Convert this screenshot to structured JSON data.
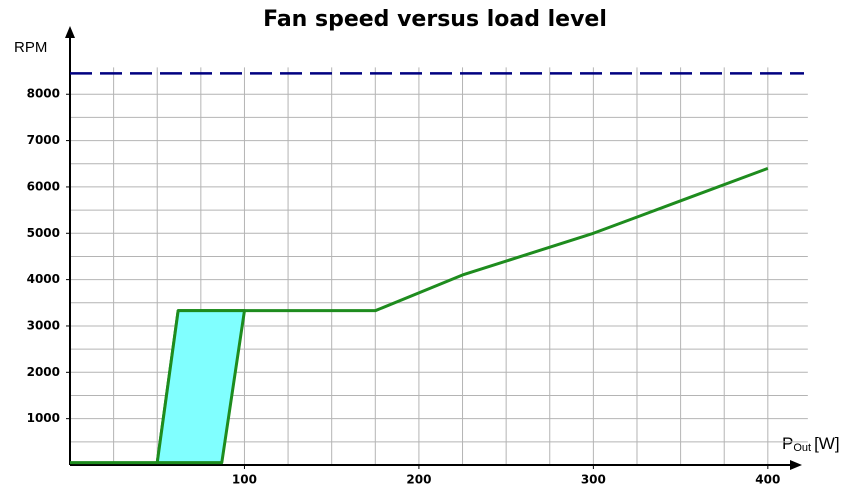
{
  "chart_data": {
    "type": "line",
    "title": "Fan speed versus load level",
    "ylabel": "RPM",
    "xlabel": [
      "P",
      "Out",
      "[W]"
    ],
    "xlim": [
      0,
      415
    ],
    "ylim": [
      0,
      9300
    ],
    "xticks": [
      100,
      200,
      300,
      400
    ],
    "yticks": [
      1000,
      2000,
      3000,
      4000,
      5000,
      6000,
      7000,
      8000
    ],
    "x_gridlines": [
      25,
      50,
      75,
      100,
      125,
      150,
      175,
      200,
      225,
      250,
      275,
      300,
      325,
      350,
      375,
      400
    ],
    "y_gridlines": [
      500,
      1000,
      1500,
      2000,
      2500,
      3000,
      3500,
      4000,
      4500,
      5000,
      5500,
      6000,
      6500,
      7000,
      7500,
      8000
    ],
    "series": [
      {
        "color": "#1e8c1e",
        "x": [
          0,
          50,
          62,
          100,
          175,
          225,
          300,
          350,
          400
        ],
        "values": [
          50,
          50,
          3330,
          3330,
          3330,
          4100,
          5000,
          5700,
          6400
        ]
      },
      {
        "color": "#1e8c1e",
        "fill": "#80ffff",
        "closed": true,
        "x": [
          50,
          62,
          100,
          87
        ],
        "values": [
          50,
          3330,
          3330,
          50
        ]
      }
    ],
    "reference_line": {
      "value": 8450,
      "color": "#000080",
      "dashed": true
    }
  }
}
